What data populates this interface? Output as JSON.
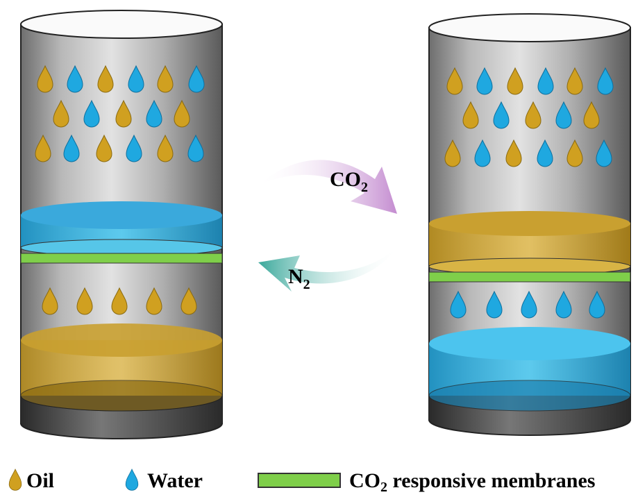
{
  "arrows": [
    {
      "label": {
        "main": "CO",
        "sub": "2"
      }
    },
    {
      "label": {
        "main": "N",
        "sub": "2"
      }
    }
  ],
  "legend": [
    {
      "label": "Oil"
    },
    {
      "label": "Water"
    },
    {
      "label": {
        "main": "CO",
        "sub": "2",
        "rest": " responsive membranes"
      }
    }
  ]
}
